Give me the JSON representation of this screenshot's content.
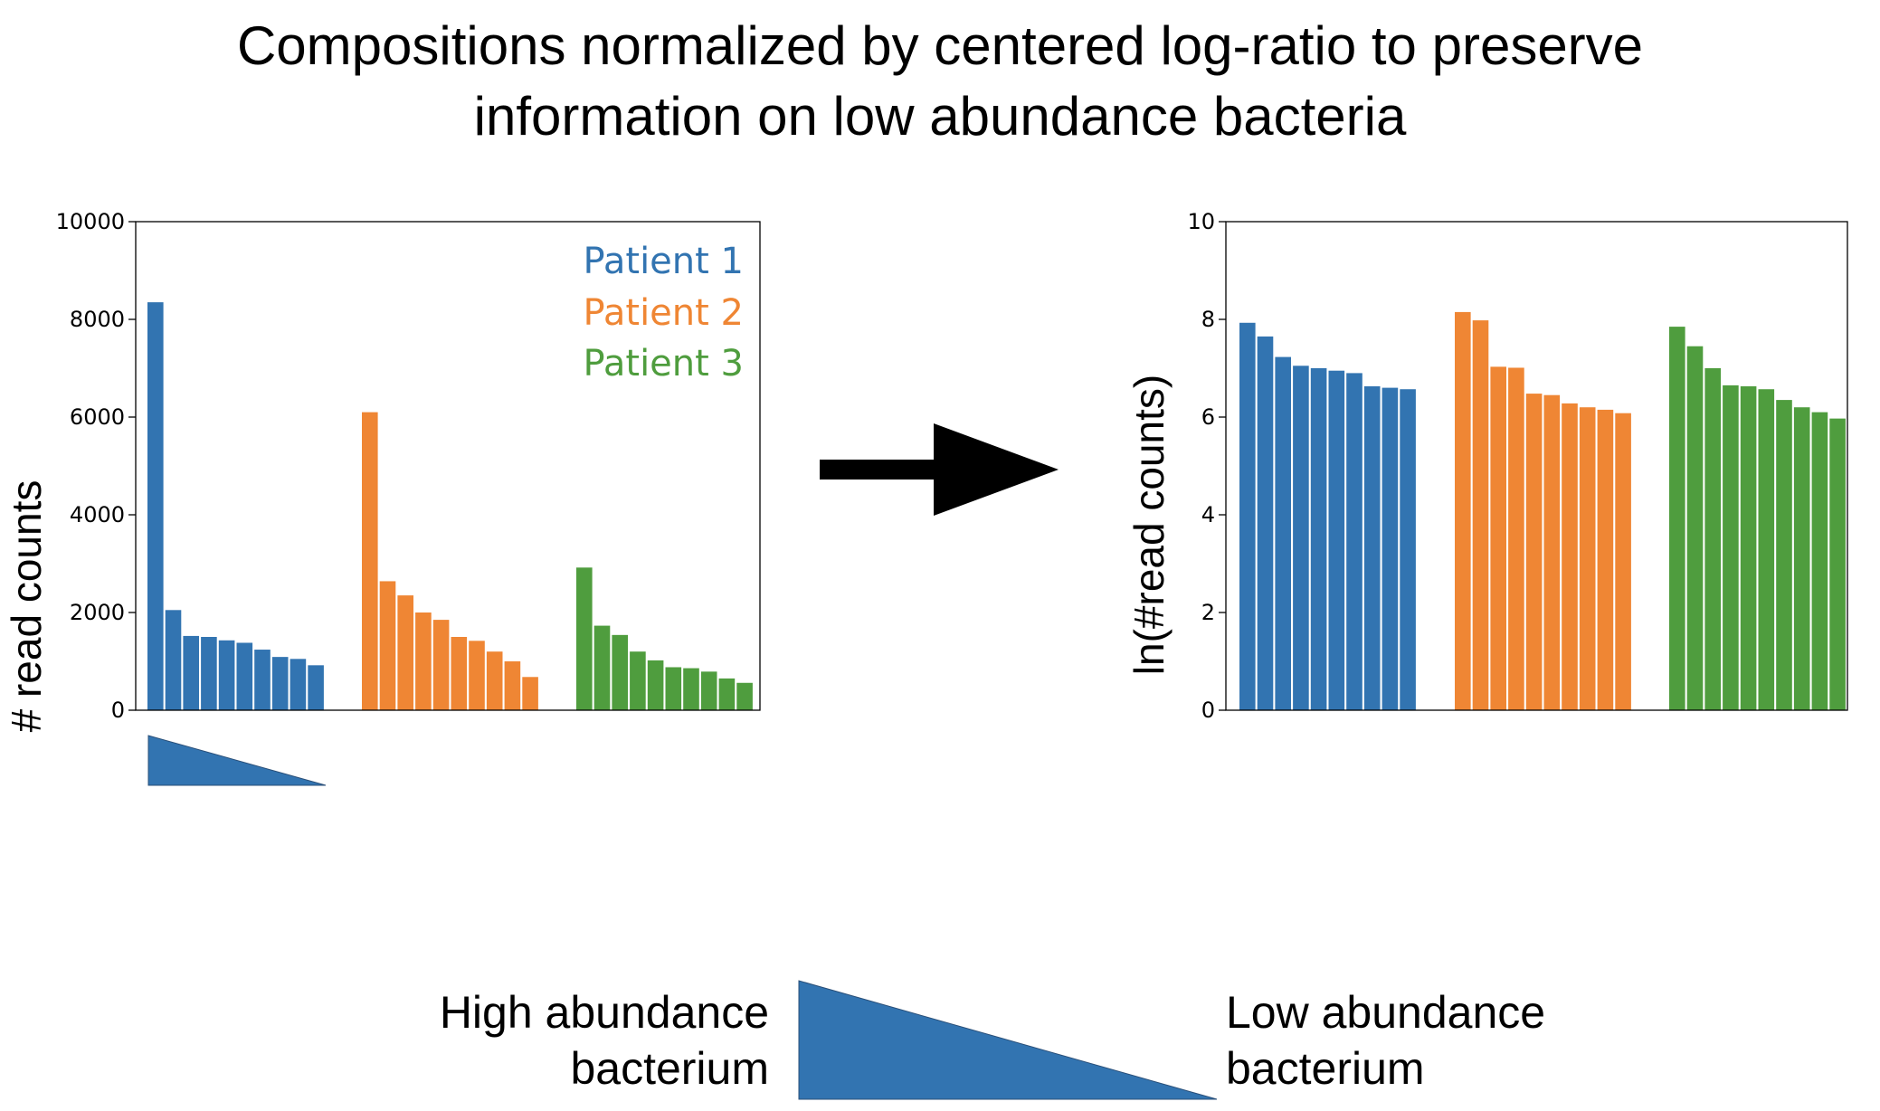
{
  "title": {
    "line1": "Compositions normalized by centered log-ratio to preserve",
    "line2": "information on low abundance bacteria"
  },
  "colors": {
    "patient1": "#3274b1",
    "patient2": "#ef8634",
    "patient3": "#4f9d3e",
    "arrow": "#000000",
    "frame": "#000000"
  },
  "chart_data": [
    {
      "type": "bar",
      "ylabel": "# read counts",
      "xlabel": "",
      "ylim": [
        0,
        10000
      ],
      "yticks": [
        0,
        2000,
        4000,
        6000,
        8000,
        10000
      ],
      "grid": false,
      "legend_position": "top-right",
      "series": [
        {
          "name": "Patient 1",
          "values": [
            8350,
            2050,
            1520,
            1500,
            1430,
            1380,
            1240,
            1090,
            1050,
            920
          ]
        },
        {
          "name": "Patient 2",
          "values": [
            6100,
            2640,
            2350,
            2000,
            1850,
            1500,
            1420,
            1200,
            1000,
            680
          ]
        },
        {
          "name": "Patient 3",
          "values": [
            2920,
            1730,
            1540,
            1200,
            1020,
            880,
            860,
            790,
            650,
            560
          ]
        }
      ]
    },
    {
      "type": "bar",
      "ylabel": "ln(#read counts)",
      "xlabel": "",
      "ylim": [
        0,
        10
      ],
      "yticks": [
        0,
        2,
        4,
        6,
        8,
        10
      ],
      "grid": false,
      "series": [
        {
          "values": [
            7.93,
            7.65,
            7.23,
            7.05,
            7.0,
            6.95,
            6.9,
            6.63,
            6.6,
            6.57
          ]
        },
        {
          "values": [
            8.15,
            7.98,
            7.03,
            7.01,
            6.48,
            6.45,
            6.28,
            6.2,
            6.15,
            6.08
          ]
        },
        {
          "values": [
            7.85,
            7.45,
            7.0,
            6.65,
            6.63,
            6.57,
            6.35,
            6.2,
            6.1,
            5.97
          ]
        }
      ]
    }
  ],
  "abundance_scale": {
    "high_line1": "High abundance",
    "high_line2": "bacterium",
    "low_line1": "Low abundance",
    "low_line2": "bacterium"
  }
}
